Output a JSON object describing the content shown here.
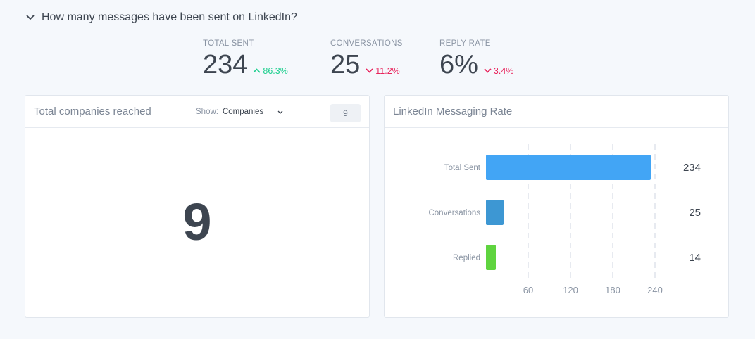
{
  "question": {
    "text": "How many messages have been sent on LinkedIn?"
  },
  "stats": [
    {
      "label": "TOTAL SENT",
      "value": "234",
      "delta": "86.3%",
      "direction": "up"
    },
    {
      "label": "CONVERSATIONS",
      "value": "25",
      "delta": "11.2%",
      "direction": "down"
    },
    {
      "label": "REPLY RATE",
      "value": "6%",
      "delta": "3.4%",
      "direction": "down"
    }
  ],
  "companies_card": {
    "title": "Total companies reached",
    "show_label": "Show:",
    "show_value": "Companies",
    "count": "9",
    "big_value": "9"
  },
  "rate_card": {
    "title": "LinkedIn Messaging Rate"
  },
  "colors": {
    "up": "#1fcf8f",
    "down": "#e8245c"
  },
  "chart_data": {
    "type": "bar",
    "orientation": "horizontal",
    "categories": [
      "Total Sent",
      "Conversations",
      "Replied"
    ],
    "values": [
      234,
      25,
      14
    ],
    "colors": [
      "#42a5f5",
      "#3d97d3",
      "#5fd43f"
    ],
    "xticks": [
      60,
      120,
      180,
      240
    ],
    "xlim": [
      0,
      240
    ],
    "grid": "dashed vertical",
    "title": "LinkedIn Messaging Rate"
  }
}
